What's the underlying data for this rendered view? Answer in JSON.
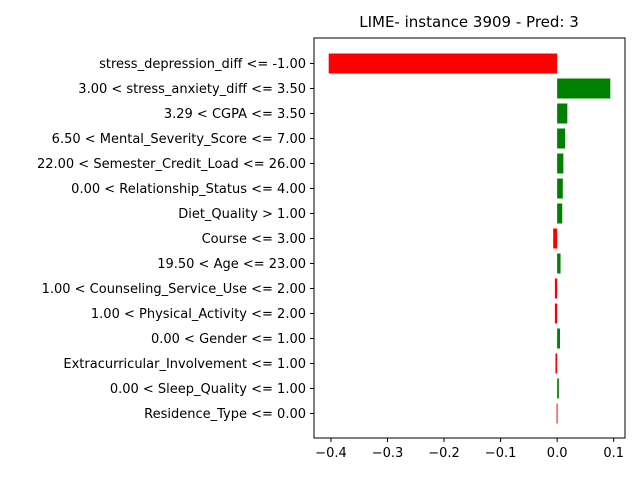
{
  "chart_data": {
    "type": "bar",
    "orientation": "horizontal",
    "title": "LIME- instance 3909 - Pred: 3",
    "xlabel": "",
    "ylabel": "",
    "xlim": [
      -0.43,
      0.12
    ],
    "xticks": [
      -0.4,
      -0.3,
      -0.2,
      -0.1,
      0.0,
      0.1
    ],
    "xtick_labels": [
      "−0.4",
      "−0.3",
      "−0.2",
      "−0.1",
      "0.0",
      "0.1"
    ],
    "grid": false,
    "positive_color": "#008000",
    "negative_color": "#ff0000",
    "categories": [
      "stress_depression_diff <= -1.00",
      "3.00 < stress_anxiety_diff <= 3.50",
      "3.29 < CGPA <= 3.50",
      "6.50 < Mental_Severity_Score <= 7.00",
      "22.00 < Semester_Credit_Load <= 26.00",
      "0.00 < Relationship_Status <= 4.00",
      "Diet_Quality > 1.00",
      "Course <= 3.00",
      "19.50 < Age <= 23.00",
      "1.00 < Counseling_Service_Use <= 2.00",
      "1.00 < Physical_Activity <= 2.00",
      "0.00 < Gender <= 1.00",
      "Extracurricular_Involvement <= 1.00",
      "0.00 < Sleep_Quality <= 1.00",
      "Residence_Type <= 0.00"
    ],
    "values": [
      -0.404,
      0.094,
      0.018,
      0.014,
      0.011,
      0.01,
      0.009,
      -0.007,
      0.006,
      -0.004,
      -0.004,
      0.005,
      -0.003,
      0.003,
      -0.001
    ]
  }
}
